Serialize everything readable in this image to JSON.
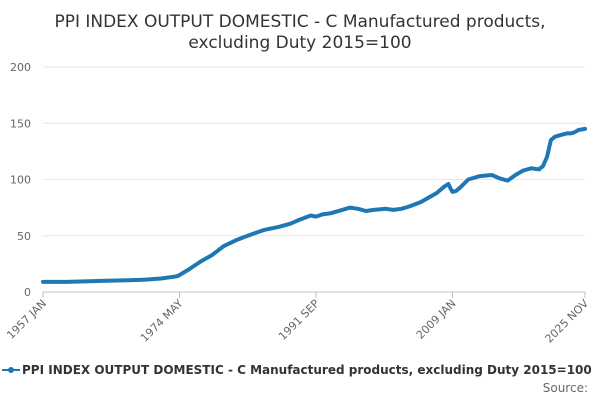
{
  "chart_data": {
    "type": "line",
    "title": "PPI INDEX OUTPUT DOMESTIC - C Manufactured products, excluding Duty 2015=100",
    "title_lines": [
      "PPI INDEX OUTPUT DOMESTIC - C Manufactured products,",
      "excluding Duty 2015=100"
    ],
    "xlabel": "",
    "ylabel": "",
    "ylim": [
      0,
      200
    ],
    "yticks": [
      0,
      50,
      100,
      150,
      200
    ],
    "xticks": [
      "1957 JAN",
      "1974 MAY",
      "1991 SEP",
      "2009 JAN",
      "2025 NOV"
    ],
    "grid": "horizontal",
    "legend": "bottom",
    "color": "#1f77b4",
    "source_label": "Source:",
    "series": [
      {
        "name": "PPI INDEX OUTPUT DOMESTIC - C Manufactured products, excluding Duty 2015=100",
        "x": [
          1957.0,
          1960.0,
          1965.0,
          1968.0,
          1970.0,
          1972.0,
          1974.0,
          1974.33,
          1975.5,
          1977.0,
          1978.5,
          1980.0,
          1981.5,
          1983.0,
          1985.0,
          1987.0,
          1988.5,
          1989.5,
          1991.0,
          1991.67,
          1992.5,
          1993.5,
          1995.0,
          1996.0,
          1997.0,
          1998.0,
          1999.0,
          2000.5,
          2001.5,
          2002.5,
          2003.5,
          2005.0,
          2006.0,
          2007.0,
          2008.0,
          2008.5,
          2008.75,
          2009.0,
          2009.5,
          2010.0,
          2011.0,
          2012.5,
          2014.0,
          2015.0,
          2016.0,
          2017.0,
          2018.0,
          2019.0,
          2020.0,
          2020.5,
          2021.0,
          2021.5,
          2022.0,
          2022.5,
          2023.0,
          2023.5,
          2024.0,
          2024.5,
          2025.0,
          2025.83
        ],
        "values": [
          9,
          9,
          10,
          10.5,
          11,
          12,
          14,
          15,
          20,
          27,
          33,
          41,
          46,
          50,
          55,
          58,
          61,
          64,
          68,
          67,
          69,
          70,
          73,
          75,
          74,
          72,
          73,
          74,
          73,
          74,
          76,
          80,
          84,
          88,
          94,
          96,
          92,
          89,
          90,
          93,
          100,
          103,
          104,
          101,
          99,
          104,
          108,
          110,
          109,
          112,
          120,
          135,
          138,
          139,
          140,
          141,
          141,
          142,
          144,
          145
        ]
      }
    ]
  }
}
